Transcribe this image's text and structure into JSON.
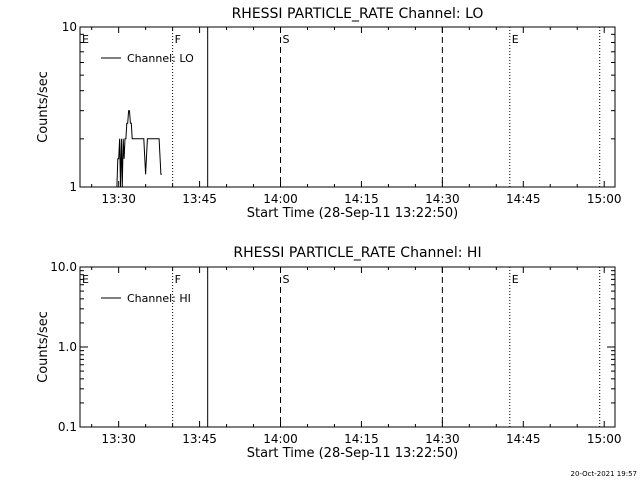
{
  "chart_data": [
    {
      "type": "line",
      "title": "RHESSI PARTICLE_RATE Channel: LO",
      "xlabel": "Start Time (28-Sep-11 13:22:50)",
      "ylabel": "Counts/sec",
      "yscale": "log",
      "ylim": [
        1,
        10
      ],
      "xlim": [
        "13:22:50",
        "15:02:00"
      ],
      "x_tick_labels": [
        "13:30",
        "13:45",
        "14:00",
        "14:15",
        "14:30",
        "14:45",
        "15:00"
      ],
      "y_tick_labels": [
        "1",
        "10"
      ],
      "grid": false,
      "legend_position": "top-left",
      "series": [
        {
          "name": "Channel: LO",
          "x": [
            "13:29:40",
            "13:29:50",
            "13:30:00",
            "13:30:10",
            "13:30:20",
            "13:30:30",
            "13:30:40",
            "13:30:50",
            "13:31:00",
            "13:31:10",
            "13:31:20",
            "13:31:30",
            "13:31:40",
            "13:31:50",
            "13:32:00",
            "13:32:10",
            "13:32:20",
            "13:32:30",
            "13:32:40",
            "13:32:50",
            "13:33:00",
            "13:33:20",
            "13:33:40",
            "13:34:00",
            "13:34:20",
            "13:34:40",
            "13:35:00",
            "13:35:20",
            "13:35:40",
            "13:35:50",
            "13:36:00",
            "13:36:30",
            "13:37:00",
            "13:37:30",
            "13:37:50",
            "13:38:00"
          ],
          "y": [
            1,
            1.5,
            1.5,
            2,
            1,
            2,
            1,
            2,
            1.5,
            2,
            2,
            2.5,
            2.5,
            3,
            3,
            2.5,
            2.5,
            2,
            2,
            2,
            2,
            2,
            2,
            2,
            2,
            2,
            1.2,
            2,
            2,
            2,
            2,
            2,
            2,
            2,
            1.2,
            1.2
          ]
        }
      ],
      "markers": [
        {
          "label": "E",
          "x": "13:22:50",
          "style": "none"
        },
        {
          "label": "F",
          "x": "13:40:00",
          "style": "dotted"
        },
        {
          "label": "",
          "x": "13:46:30",
          "style": "solid"
        },
        {
          "label": "S",
          "x": "14:00:00",
          "style": "dashed"
        },
        {
          "label": "",
          "x": "14:30:00",
          "style": "dashed"
        },
        {
          "label": "E",
          "x": "14:42:30",
          "style": "dotted"
        },
        {
          "label": "",
          "x": "14:59:10",
          "style": "dotted"
        }
      ]
    },
    {
      "type": "line",
      "title": "RHESSI PARTICLE_RATE Channel: HI",
      "xlabel": "Start Time (28-Sep-11 13:22:50)",
      "ylabel": "Counts/sec",
      "yscale": "log",
      "ylim": [
        0.1,
        10
      ],
      "xlim": [
        "13:22:50",
        "15:02:00"
      ],
      "x_tick_labels": [
        "13:30",
        "13:45",
        "14:00",
        "14:15",
        "14:30",
        "14:45",
        "15:00"
      ],
      "y_tick_labels": [
        "0.1",
        "1.0",
        "10.0"
      ],
      "grid": false,
      "legend_position": "top-left",
      "series": [
        {
          "name": "Channel: HI",
          "x": [],
          "y": []
        }
      ],
      "markers": [
        {
          "label": "E",
          "x": "13:22:50",
          "style": "none"
        },
        {
          "label": "F",
          "x": "13:40:00",
          "style": "dotted"
        },
        {
          "label": "",
          "x": "13:46:30",
          "style": "solid"
        },
        {
          "label": "S",
          "x": "14:00:00",
          "style": "dashed"
        },
        {
          "label": "",
          "x": "14:30:00",
          "style": "dashed"
        },
        {
          "label": "E",
          "x": "14:42:30",
          "style": "dotted"
        },
        {
          "label": "",
          "x": "14:59:10",
          "style": "dotted"
        }
      ]
    }
  ],
  "footer": {
    "timestamp": "20-Oct-2021 19:57"
  }
}
